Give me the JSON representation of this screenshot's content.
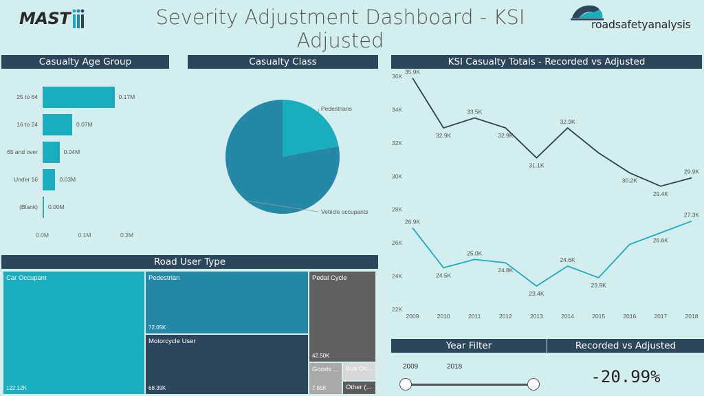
{
  "header": {
    "title": "Severity Adjustment Dashboard - KSI Adjusted",
    "logo_left_text": "MAST",
    "logo_right_text": "roadsafetyanalysis"
  },
  "panels": {
    "age_group": {
      "title": "Casualty Age Group"
    },
    "casualty_class": {
      "title": "Casualty Class"
    },
    "ksi_totals": {
      "title": "KSI Casualty Totals - Recorded vs Adjusted"
    },
    "road_user": {
      "title": "Road User Type"
    },
    "year_filter": {
      "title": "Year Filter",
      "start": "2009",
      "end": "2018",
      "start_fraction": 0.0,
      "end_fraction": 1.0
    },
    "recorded_vs_adjusted": {
      "title": "Recorded vs Adjusted",
      "value": "-20.99%"
    }
  },
  "chart_data": [
    {
      "type": "bar",
      "orientation": "horizontal",
      "categories": [
        "25 to 64",
        "16 to 24",
        "65 and over",
        "Under 16",
        "(Blank)"
      ],
      "values": [
        0.17,
        0.07,
        0.04,
        0.03,
        0.0
      ],
      "value_labels": [
        "0.17M",
        "0.07M",
        "0.04M",
        "0.03M",
        "0.00M"
      ],
      "xticks": [
        "0.0M",
        "0.1M",
        "0.2M"
      ],
      "xlim": [
        0,
        0.2
      ],
      "color": "#18aebe"
    },
    {
      "type": "pie",
      "labels": [
        "Pedestrians",
        "Vehicle occupants"
      ],
      "values": [
        22,
        78
      ],
      "colors": [
        "#18aebe",
        "#2389a6"
      ]
    },
    {
      "type": "line",
      "x": [
        2009,
        2010,
        2011,
        2012,
        2013,
        2014,
        2015,
        2016,
        2017,
        2018
      ],
      "xticks": [
        "2009",
        "2010",
        "2011",
        "2012",
        "2013",
        "2014",
        "2015",
        "2016",
        "2017",
        "2018"
      ],
      "yticks": [
        "22K",
        "24K",
        "26K",
        "28K",
        "30K",
        "32K",
        "34K",
        "36K"
      ],
      "ylim": [
        22000,
        36000
      ],
      "series": [
        {
          "color": "#333f48",
          "values": [
            35900,
            32900,
            33500,
            32900,
            31100,
            32900,
            31400,
            30200,
            29400,
            29900
          ],
          "labels": [
            "35.9K",
            "32.9K",
            "33.5K",
            "32.9K",
            "31.1K",
            "32.9K",
            "",
            "30.2K",
            "29.4K",
            "29.9K"
          ]
        },
        {
          "color": "#18aebe",
          "values": [
            26900,
            24500,
            25000,
            24800,
            23400,
            24600,
            23900,
            25900,
            26600,
            27300
          ],
          "labels": [
            "26.9K",
            "24.5K",
            "25.0K",
            "24.8K",
            "23.4K",
            "24.6K",
            "23.9K",
            "",
            "26.6K",
            "27.3K"
          ]
        }
      ]
    },
    {
      "type": "treemap",
      "items": [
        {
          "label": "Car Occupant",
          "value": "122.12K",
          "color": "#18aebe"
        },
        {
          "label": "Pedestrian",
          "value": "72.05K",
          "color": "#2389a6"
        },
        {
          "label": "Motorcycle User",
          "value": "68.39K",
          "color": "#2e4659"
        },
        {
          "label": "Pedal Cycle",
          "value": "42.50K",
          "color": "#606060"
        },
        {
          "label": "Goods ...",
          "value": "7.65K",
          "color": "#a9a9a9"
        },
        {
          "label": "Bus Oc...",
          "value": "",
          "color": "#d8d8d8"
        },
        {
          "label": "Other (...",
          "value": "",
          "color": "#5a5a5a"
        }
      ]
    }
  ]
}
